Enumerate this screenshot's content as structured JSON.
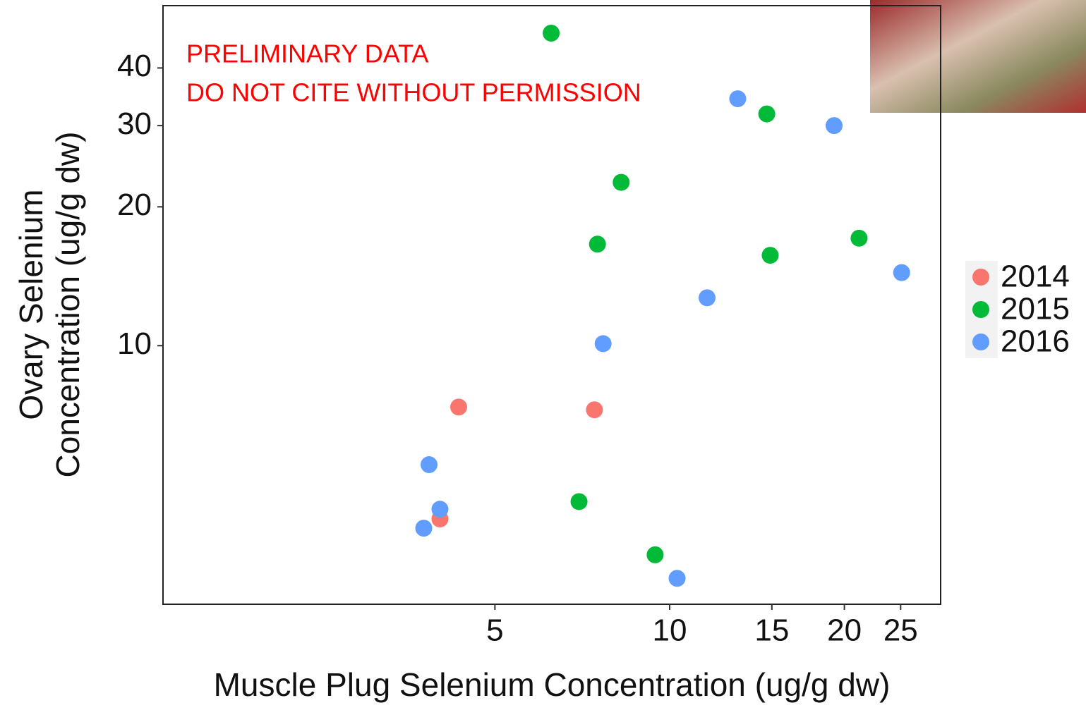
{
  "chart_data": {
    "type": "scatter",
    "x_label": "Muscle Plug Selenium Concentration (ug/g dw)",
    "y_label": [
      "Ovary Selenium",
      "Concentration (ug/g dw)"
    ],
    "annotations": [
      "PRELIMINARY DATA",
      "DO NOT CITE WITHOUT PERMISSION"
    ],
    "x_log": true,
    "y_log": true,
    "grid": false,
    "legend": "right",
    "xlim": [
      1.34,
      29.3
    ],
    "ylim": [
      2.75,
      54.6
    ],
    "xticks": [
      5,
      10,
      15,
      20,
      25
    ],
    "yticks": [
      10,
      20,
      30,
      40
    ],
    "series": [
      {
        "name": "2014",
        "color": "#f8766d",
        "x": [
          4.33,
          7.42,
          4.02
        ],
        "values": [
          7.36,
          7.26,
          4.21
        ]
      },
      {
        "name": "2015",
        "color": "#00ba38",
        "x": [
          6.25,
          14.7,
          8.25,
          7.51,
          14.9,
          21.2,
          6.98,
          9.44
        ],
        "values": [
          47.6,
          31.8,
          22.6,
          16.6,
          15.7,
          17.1,
          4.59,
          3.52
        ]
      },
      {
        "name": "2016",
        "color": "#619cff",
        "x": [
          13.1,
          19.2,
          25.1,
          11.6,
          7.68,
          3.85,
          4.02,
          3.77,
          10.3
        ],
        "values": [
          34.3,
          30.0,
          14.4,
          12.7,
          10.1,
          5.52,
          4.42,
          4.02,
          3.13
        ]
      }
    ]
  }
}
